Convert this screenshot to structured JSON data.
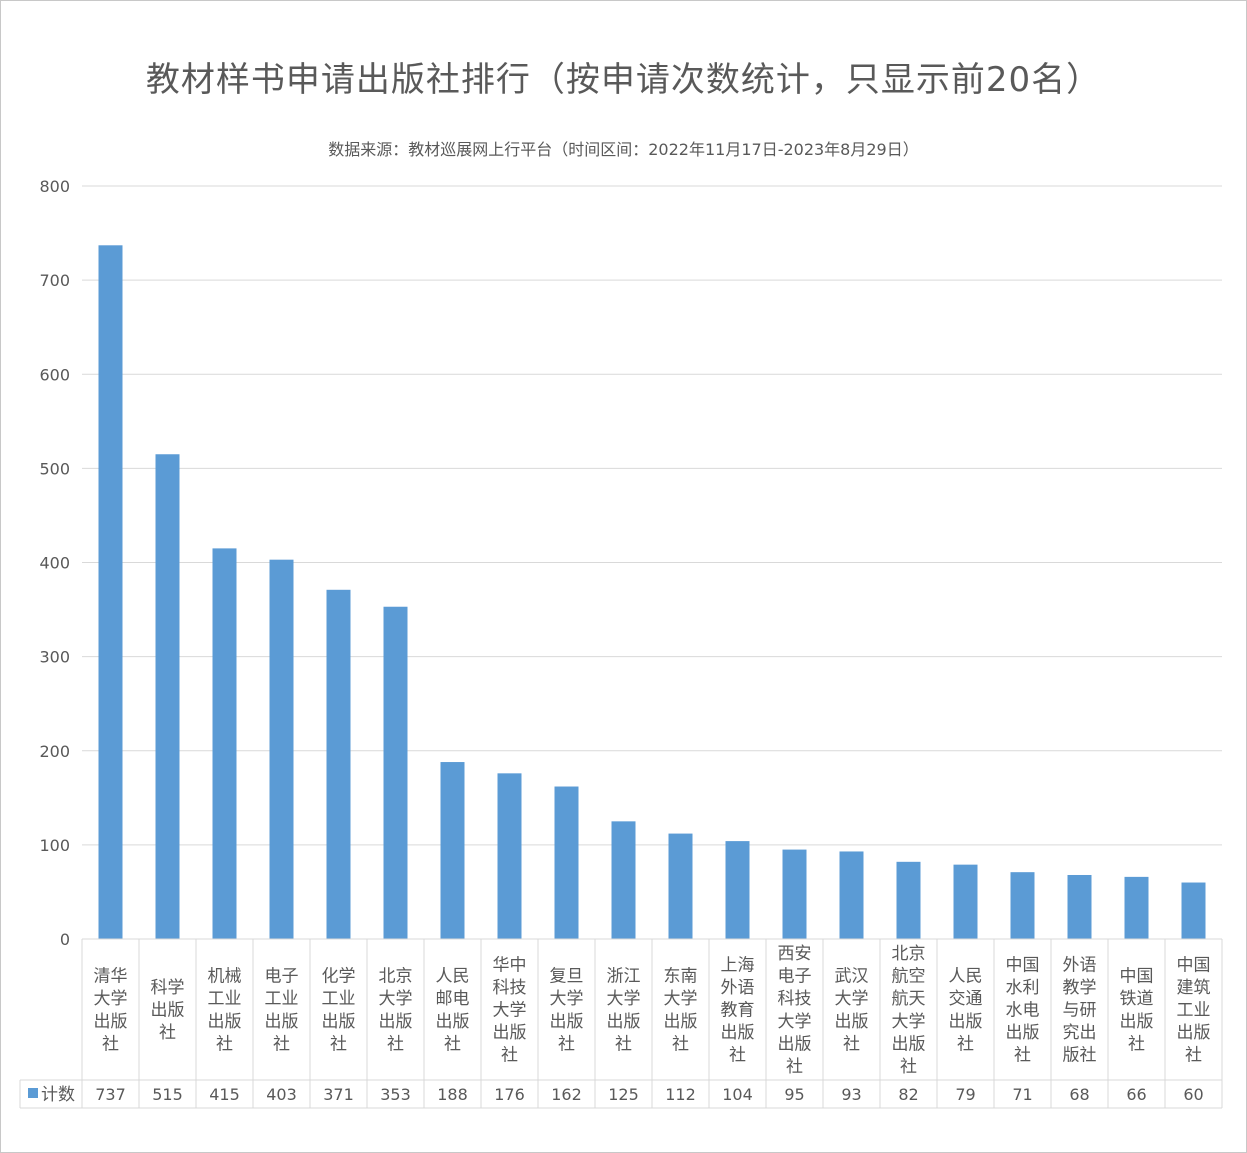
{
  "title": "教材样书申请出版社排行（按申请次数统计，只显示前20名）",
  "subtitle": "数据来源：教材巡展网上行平台（时间区间：2022年11月17日-2023年8月29日）",
  "chart_data": {
    "type": "bar",
    "series": [
      {
        "name": "计数",
        "color": "#5b9bd5",
        "values": [
          737,
          515,
          415,
          403,
          371,
          353,
          188,
          176,
          162,
          125,
          112,
          104,
          95,
          93,
          82,
          79,
          71,
          68,
          66,
          60
        ]
      }
    ],
    "categories": [
      [
        "清华",
        "大学",
        "出版",
        "社"
      ],
      [
        "科学",
        "出版",
        "社"
      ],
      [
        "机械",
        "工业",
        "出版",
        "社"
      ],
      [
        "电子",
        "工业",
        "出版",
        "社"
      ],
      [
        "化学",
        "工业",
        "出版",
        "社"
      ],
      [
        "北京",
        "大学",
        "出版",
        "社"
      ],
      [
        "人民",
        "邮电",
        "出版",
        "社"
      ],
      [
        "华中",
        "科技",
        "大学",
        "出版",
        "社"
      ],
      [
        "复旦",
        "大学",
        "出版",
        "社"
      ],
      [
        "浙江",
        "大学",
        "出版",
        "社"
      ],
      [
        "东南",
        "大学",
        "出版",
        "社"
      ],
      [
        "上海",
        "外语",
        "教育",
        "出版",
        "社"
      ],
      [
        "西安",
        "电子",
        "科技",
        "大学",
        "出版",
        "社"
      ],
      [
        "武汉",
        "大学",
        "出版",
        "社"
      ],
      [
        "北京",
        "航空",
        "航天",
        "大学",
        "出版",
        "社"
      ],
      [
        "人民",
        "交通",
        "出版",
        "社"
      ],
      [
        "中国",
        "水利",
        "水电",
        "出版",
        "社"
      ],
      [
        "外语",
        "教学",
        "与研",
        "究出",
        "版社"
      ],
      [
        "中国",
        "铁道",
        "出版",
        "社"
      ],
      [
        "中国",
        "建筑",
        "工业",
        "出版",
        "社"
      ]
    ],
    "yticks": [
      "0",
      "100",
      "200",
      "300",
      "400",
      "500",
      "600",
      "700",
      "800"
    ],
    "ylim": [
      0,
      800
    ],
    "grid": true,
    "legend": "data-table"
  }
}
